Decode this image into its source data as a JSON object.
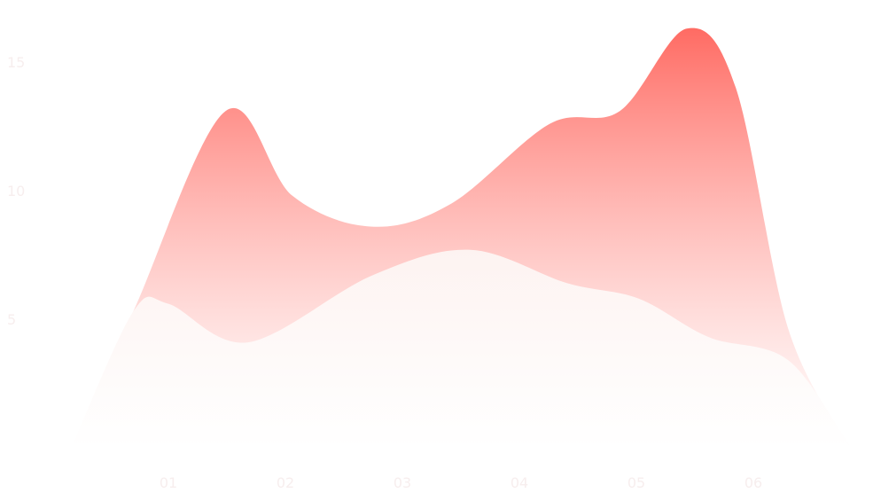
{
  "chart_data": {
    "type": "area",
    "title": "",
    "xlabel": "",
    "ylabel": "",
    "categories": [
      "01",
      "02",
      "03",
      "04",
      "05",
      "06"
    ],
    "y_ticks": [
      "5",
      "10",
      "15"
    ],
    "ylim": [
      0,
      17
    ],
    "grid": false,
    "smooth": true,
    "series": [
      {
        "color": "#ff6b63",
        "points": [
          [
            0.17,
            0
          ],
          [
            0.7,
            5.3
          ],
          [
            1.49,
            13.1
          ],
          [
            2.06,
            9.8
          ],
          [
            2.74,
            8.6
          ],
          [
            3.42,
            9.5
          ],
          [
            4.26,
            12.6
          ],
          [
            4.86,
            13.1
          ],
          [
            5.43,
            16.3
          ],
          [
            5.85,
            14.0
          ],
          [
            6.3,
            4.6
          ],
          [
            6.83,
            0
          ]
        ]
      },
      {
        "color": "#fbe6e4",
        "points": [
          [
            0.17,
            0
          ],
          [
            0.7,
            5.3
          ],
          [
            1.0,
            5.6
          ],
          [
            1.68,
            4.1
          ],
          [
            2.74,
            6.7
          ],
          [
            3.58,
            7.7
          ],
          [
            4.41,
            6.4
          ],
          [
            5.02,
            5.8
          ],
          [
            5.62,
            4.3
          ],
          [
            6.3,
            3.4
          ],
          [
            6.83,
            0
          ]
        ]
      }
    ]
  }
}
